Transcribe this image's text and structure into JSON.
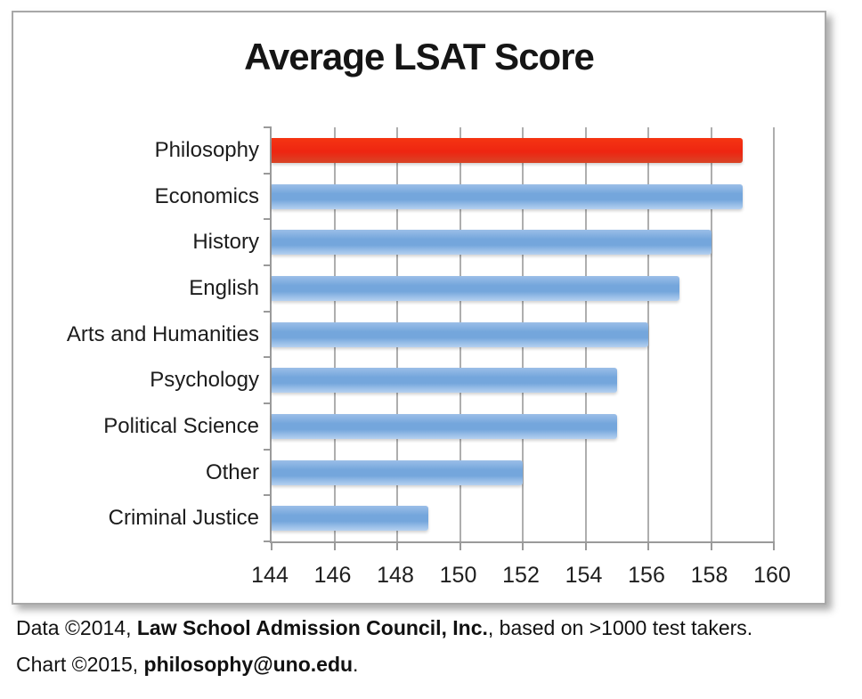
{
  "figure": {
    "title": "Average LSAT Score"
  },
  "chart_data": {
    "type": "bar",
    "orientation": "horizontal",
    "title": "Average LSAT Score",
    "categories": [
      "Philosophy",
      "Economics",
      "History",
      "English",
      "Arts and Humanities",
      "Psychology",
      "Political Science",
      "Other",
      "Criminal Justice"
    ],
    "values": [
      159,
      159,
      158,
      157,
      156,
      155,
      155,
      152,
      149
    ],
    "highlight_category": "Philosophy",
    "xlim": [
      144,
      160
    ],
    "x_ticks": [
      144,
      146,
      148,
      150,
      152,
      154,
      156,
      158,
      160
    ],
    "xlabel": "",
    "ylabel": "",
    "grid": true,
    "legend": false
  },
  "colors": {
    "default_bar": "#74A6DC",
    "default_bar_top": "#9BBEE8",
    "default_bar_light": "#B6D1F0",
    "highlight_bar": "#EE2511",
    "highlight_bar_top": "#F53512",
    "highlight_bar_dark": "#D84527",
    "grid": "#AEAEAE",
    "axis": "#9A9A9A",
    "box_border": "#A8A8A8"
  },
  "footer": {
    "line1_prefix": "Data ©2014, ",
    "line1_bold": "Law School Admission Council, Inc.",
    "line1_suffix": ", based on >1000 test takers.",
    "line2_prefix": "Chart ©2015, ",
    "line2_bold": "philosophy@uno.edu",
    "line2_suffix": "."
  }
}
